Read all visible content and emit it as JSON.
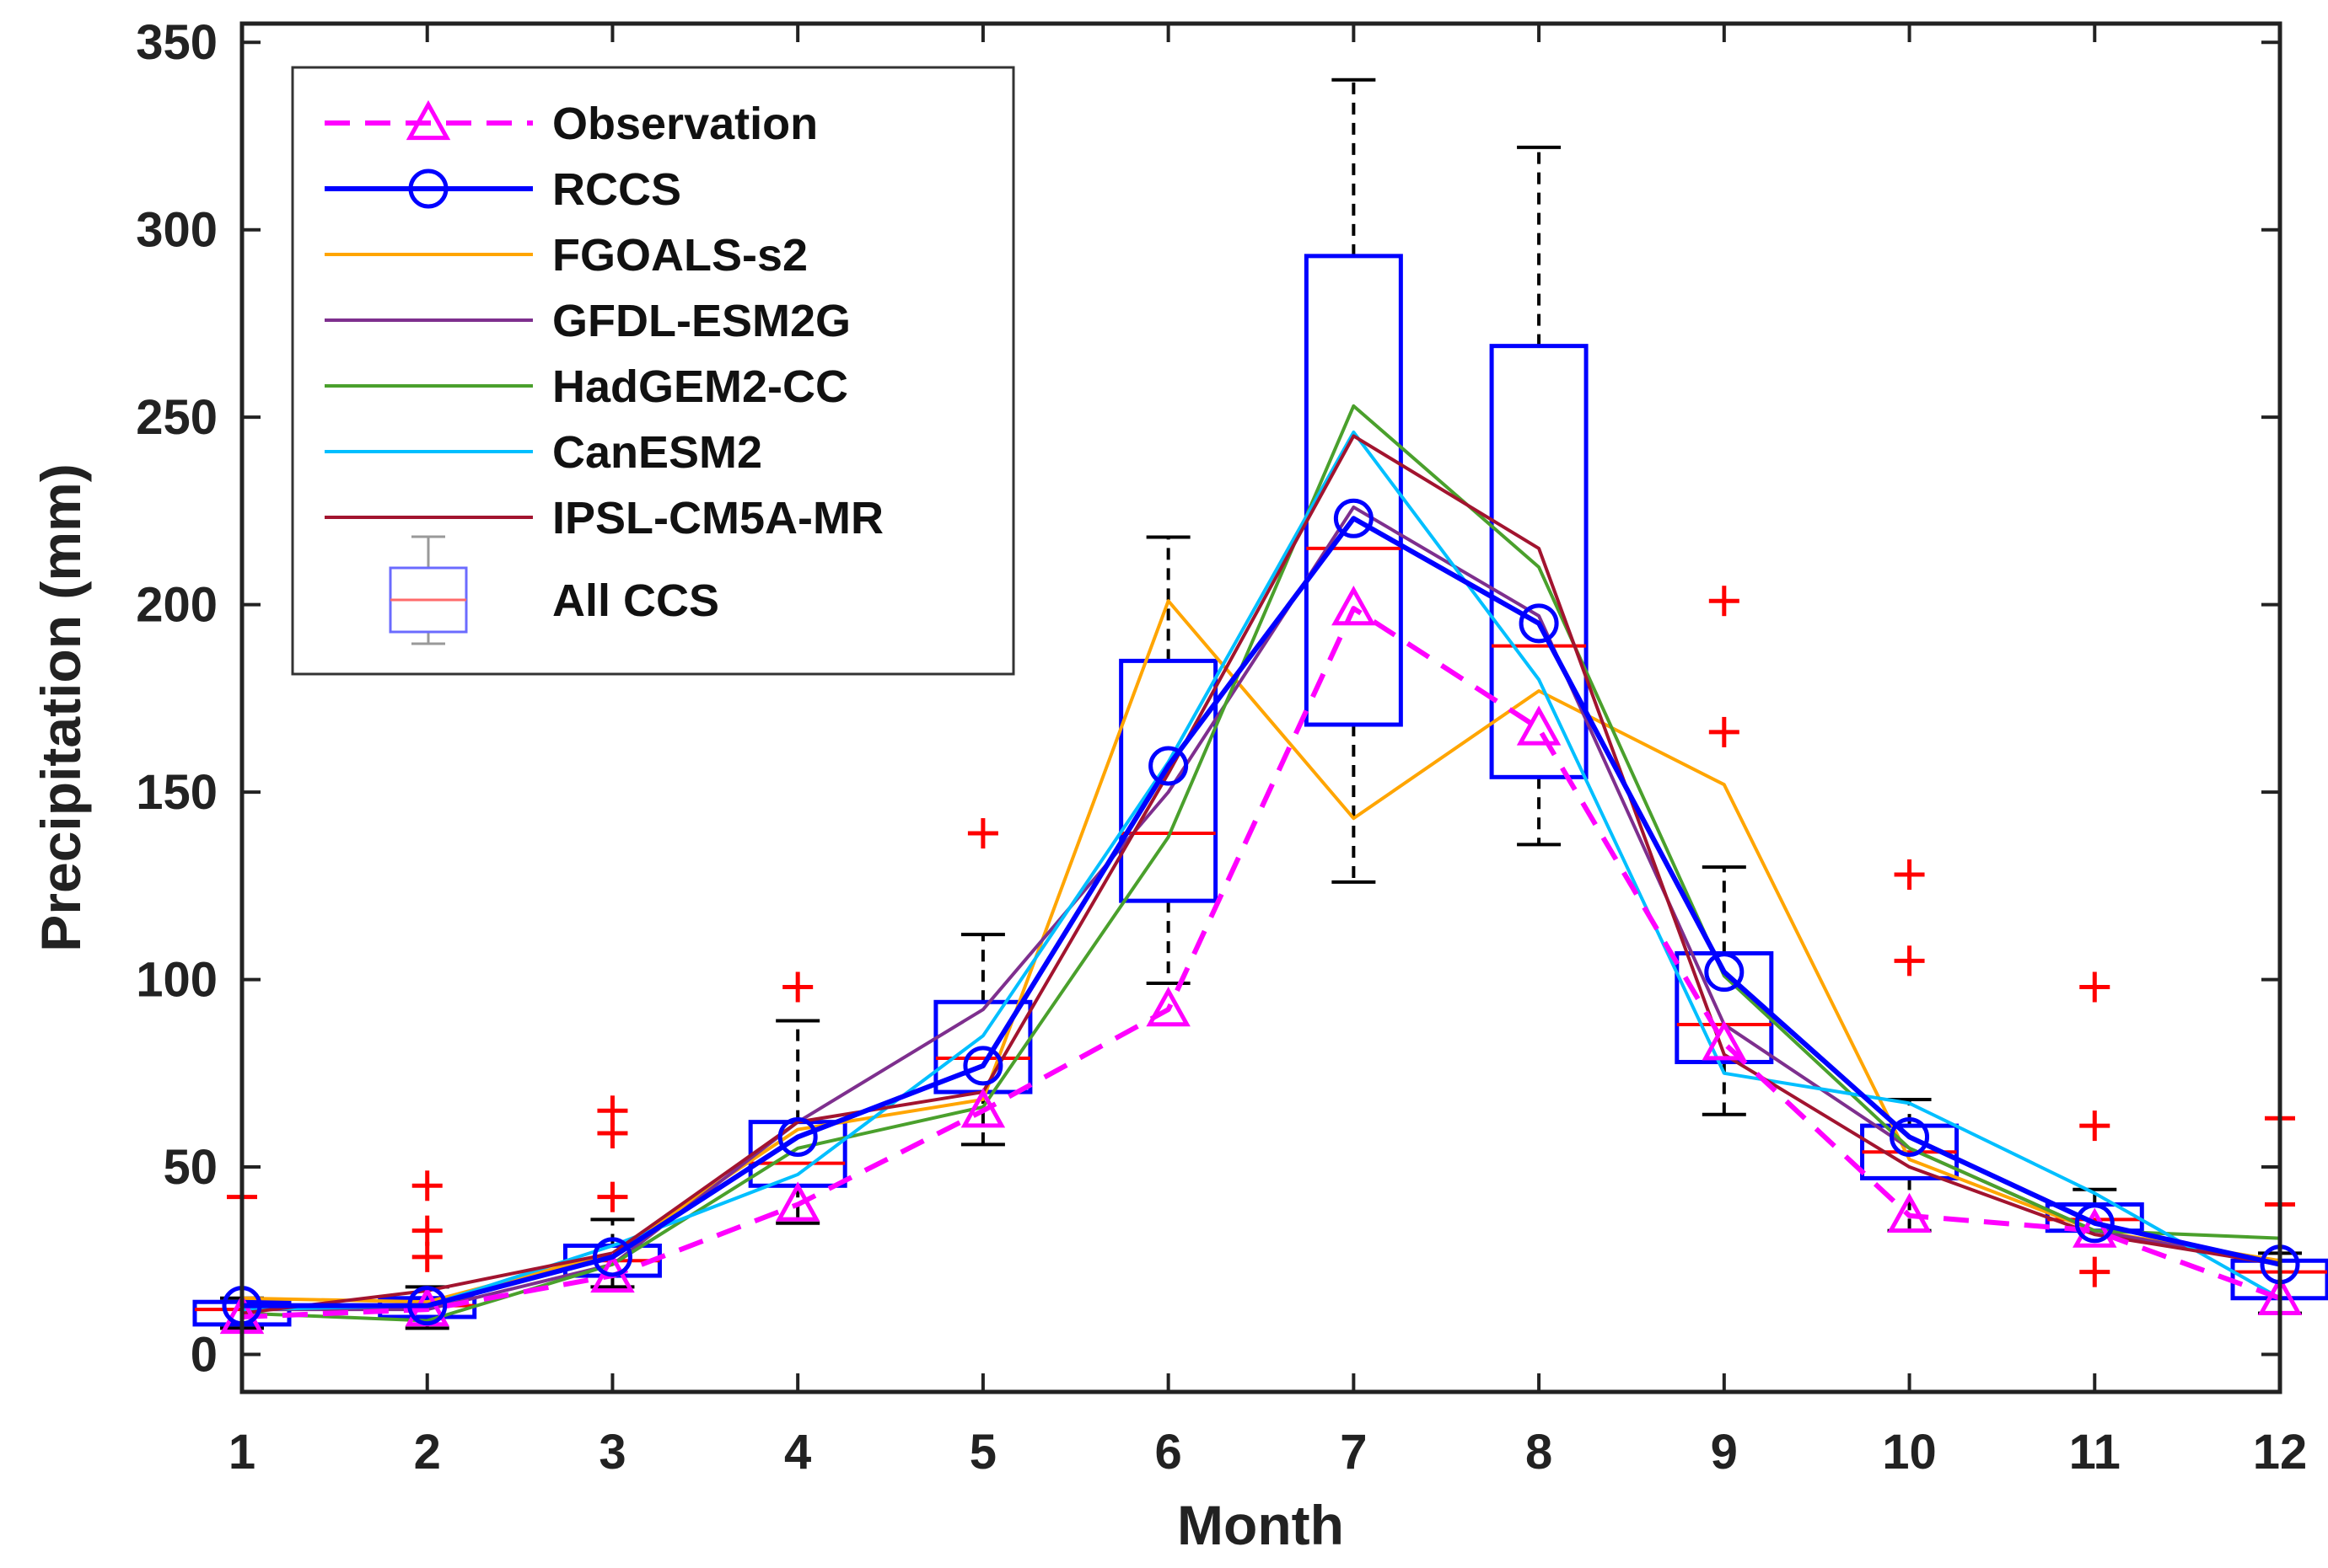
{
  "chart_data": {
    "type": "line",
    "title": "",
    "xlabel": "Month",
    "ylabel": "Precipitation (mm)",
    "x": [
      1,
      2,
      3,
      4,
      5,
      6,
      7,
      8,
      9,
      10,
      11,
      12
    ],
    "xlim": [
      1,
      12
    ],
    "ylim": [
      -10,
      355
    ],
    "xticks": [
      "1",
      "2",
      "3",
      "4",
      "5",
      "6",
      "7",
      "8",
      "9",
      "10",
      "11",
      "12"
    ],
    "yticks": [
      0,
      50,
      100,
      150,
      200,
      250,
      300,
      350
    ],
    "ytick_labels": [
      "0",
      "50",
      "100",
      "150",
      "200",
      "250",
      "300",
      "350"
    ],
    "grid": false,
    "legend_position": "top-left",
    "series": [
      {
        "name": "Observation",
        "color": "#ff00ff",
        "style": "dashed",
        "marker": "triangle",
        "values": [
          10,
          12,
          21,
          40,
          65,
          92,
          199,
          167,
          83,
          37,
          33,
          15
        ]
      },
      {
        "name": "RCCS",
        "color": "#0000ff",
        "style": "solid",
        "marker": "circle",
        "values": [
          13,
          13,
          26,
          58,
          77,
          157,
          223,
          195,
          102,
          58,
          35,
          24
        ]
      },
      {
        "name": "FGOALS-s2",
        "color": "#ffa500",
        "style": "solid",
        "marker": "none",
        "values": [
          15,
          14,
          27,
          60,
          68,
          201,
          143,
          177,
          152,
          52,
          33,
          25
        ]
      },
      {
        "name": "GFDL-ESM2G",
        "color": "#7e2f8e",
        "style": "solid",
        "marker": "none",
        "values": [
          12,
          12,
          24,
          62,
          92,
          150,
          226,
          197,
          88,
          55,
          33,
          24
        ]
      },
      {
        "name": "HadGEM2-CC",
        "color": "#4aa02c",
        "style": "solid",
        "marker": "none",
        "values": [
          11,
          9,
          24,
          55,
          66,
          138,
          253,
          210,
          101,
          55,
          33,
          31
        ]
      },
      {
        "name": "CanESM2",
        "color": "#00bfff",
        "style": "solid",
        "marker": "none",
        "values": [
          12,
          13,
          29,
          48,
          85,
          158,
          246,
          180,
          75,
          67,
          43,
          15
        ]
      },
      {
        "name": "IPSL-CM5A-MR",
        "color": "#a2142f",
        "style": "solid",
        "marker": "none",
        "values": [
          11,
          17,
          27,
          62,
          70,
          155,
          245,
          215,
          80,
          50,
          32,
          24
        ]
      }
    ],
    "boxplot": {
      "name": "All CCS",
      "box_color": "#0000ff",
      "median_color": "#ff0000",
      "whisker_color": "#000000",
      "outlier_color": "#ff0000",
      "boxes": [
        {
          "month": 1,
          "low": 7,
          "q1": 8,
          "median": 12,
          "q3": 14,
          "high": 15,
          "outliers": [
            42
          ]
        },
        {
          "month": 2,
          "low": 7,
          "q1": 10,
          "median": 13,
          "q3": 15,
          "high": 18,
          "outliers": [
            45,
            33,
            26
          ]
        },
        {
          "month": 3,
          "low": 18,
          "q1": 21,
          "median": 25,
          "q3": 29,
          "high": 36,
          "outliers": [
            65,
            59,
            42
          ]
        },
        {
          "month": 4,
          "low": 35,
          "q1": 45,
          "median": 51,
          "q3": 62,
          "high": 89,
          "outliers": [
            98
          ]
        },
        {
          "month": 5,
          "low": 56,
          "q1": 70,
          "median": 79,
          "q3": 94,
          "high": 112,
          "outliers": [
            139
          ]
        },
        {
          "month": 6,
          "low": 99,
          "q1": 121,
          "median": 139,
          "q3": 185,
          "high": 218,
          "outliers": []
        },
        {
          "month": 7,
          "low": 126,
          "q1": 168,
          "median": 215,
          "q3": 293,
          "high": 340,
          "outliers": []
        },
        {
          "month": 8,
          "low": 136,
          "q1": 154,
          "median": 189,
          "q3": 269,
          "high": 322,
          "outliers": []
        },
        {
          "month": 9,
          "low": 64,
          "q1": 78,
          "median": 88,
          "q3": 107,
          "high": 130,
          "outliers": [
            201,
            166
          ]
        },
        {
          "month": 10,
          "low": 33,
          "q1": 47,
          "median": 54,
          "q3": 61,
          "high": 68,
          "outliers": [
            128,
            105
          ]
        },
        {
          "month": 11,
          "low": 33,
          "q1": 33,
          "median": 36,
          "q3": 40,
          "high": 44,
          "outliers": [
            98,
            61,
            22
          ]
        },
        {
          "month": 12,
          "low": 11,
          "q1": 15,
          "median": 22,
          "q3": 25,
          "high": 27,
          "outliers": [
            63,
            40
          ]
        }
      ]
    }
  }
}
